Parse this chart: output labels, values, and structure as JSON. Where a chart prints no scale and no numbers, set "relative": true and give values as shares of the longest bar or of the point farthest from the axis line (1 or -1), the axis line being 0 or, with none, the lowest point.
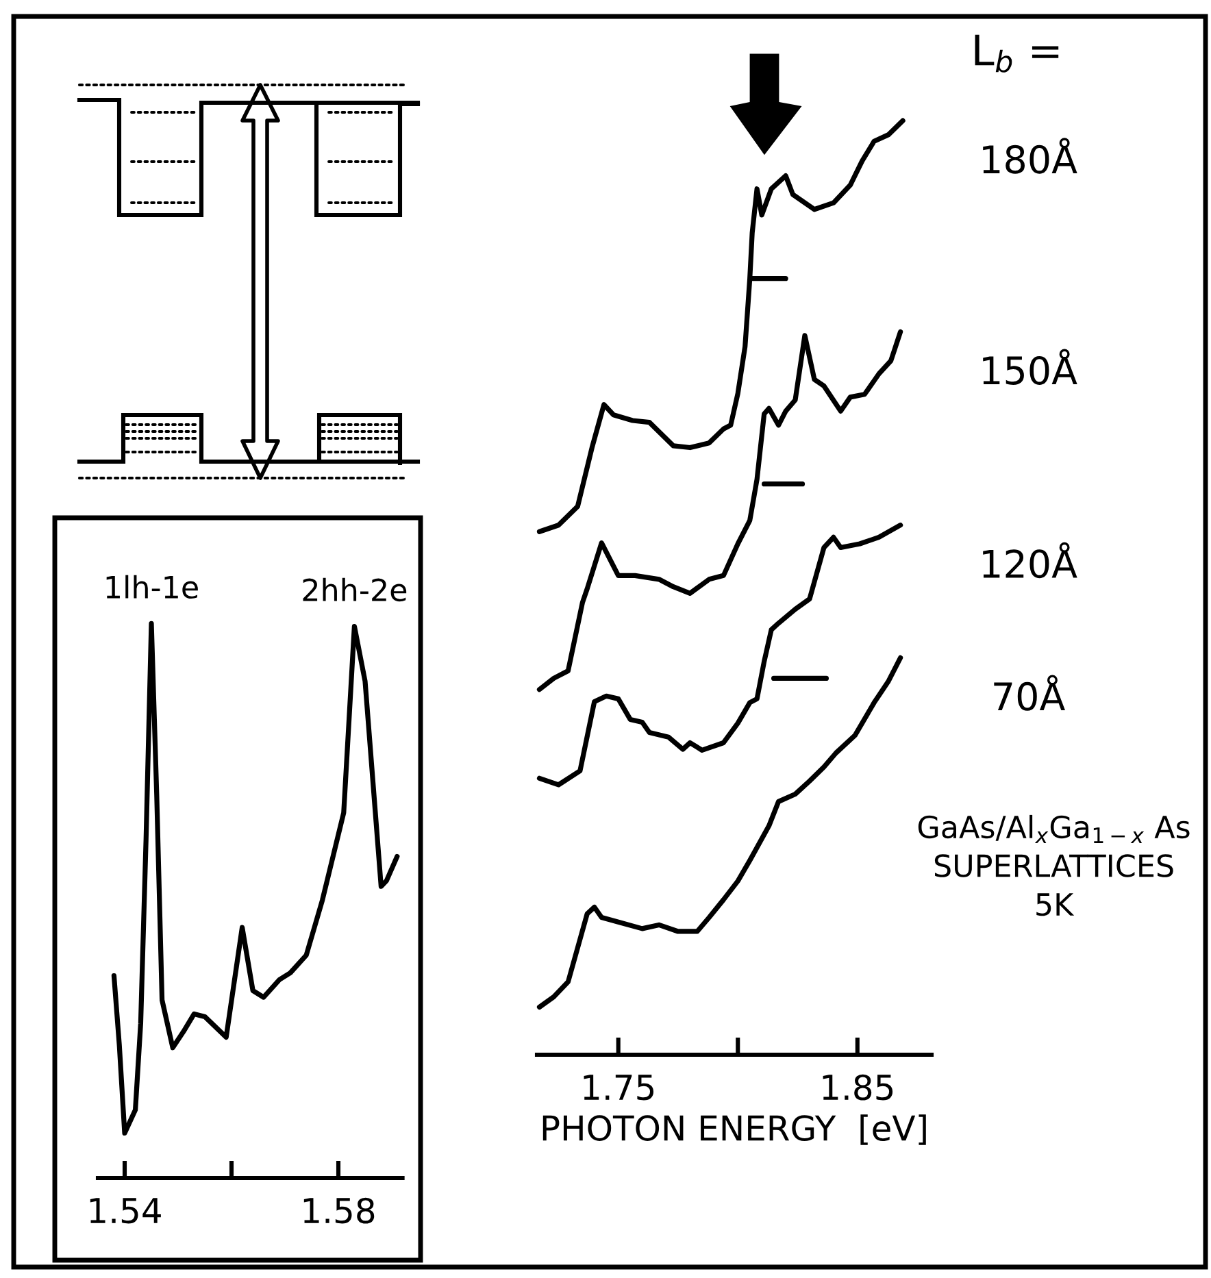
{
  "chart_data": [
    {
      "type": "line",
      "relative": true,
      "xlabel": "PHOTON ENERGY  [eV]",
      "legend_title": "L$_{b}$ =",
      "xlim": [
        1.716,
        1.881
      ],
      "xticks": [
        1.75,
        {
          "value": 1.8,
          "label": null
        },
        1.85
      ],
      "annotations": [
        "GaAs/Al$_{x}$Ga$_{1−x}$ As\nSUPERLATTICES\n5K"
      ],
      "series": [
        {
          "name": "180Å",
          "color": "#000000",
          "x": [
            1.717,
            1.725,
            1.733,
            1.739,
            1.744,
            1.748,
            1.756,
            1.763,
            1.773,
            1.78,
            1.788,
            1.794,
            1.797,
            1.8,
            1.803,
            1.805,
            1.806,
            1.808,
            1.81,
            1.814,
            1.82,
            1.823,
            1.832,
            1.84,
            1.847,
            1.852,
            1.857,
            1.863,
            1.869
          ],
          "values": [
            0.56,
            0.567,
            0.587,
            0.65,
            0.696,
            0.685,
            0.679,
            0.677,
            0.652,
            0.65,
            0.655,
            0.67,
            0.674,
            0.708,
            0.758,
            0.831,
            0.88,
            0.927,
            0.899,
            0.927,
            0.941,
            0.921,
            0.905,
            0.912,
            0.931,
            0.957,
            0.978,
            0.985,
            1.0
          ]
        },
        {
          "name": "150Å",
          "color": "#000000",
          "x": [
            1.717,
            1.723,
            1.729,
            1.735,
            1.737,
            1.743,
            1.75,
            1.757,
            1.767,
            1.773,
            1.78,
            1.788,
            1.794,
            1.8,
            1.805,
            1.808,
            1.811,
            1.813,
            1.817,
            1.82,
            1.824,
            1.828,
            1.832,
            1.836,
            1.843,
            1.847,
            1.853,
            1.859,
            1.864,
            1.868
          ],
          "values": [
            0.391,
            0.403,
            0.411,
            0.484,
            0.499,
            0.548,
            0.513,
            0.513,
            0.509,
            0.501,
            0.494,
            0.509,
            0.513,
            0.547,
            0.572,
            0.616,
            0.686,
            0.692,
            0.674,
            0.689,
            0.701,
            0.77,
            0.723,
            0.716,
            0.689,
            0.704,
            0.707,
            0.729,
            0.743,
            0.774
          ]
        },
        {
          "name": "120Å",
          "color": "#000000",
          "x": [
            1.717,
            1.725,
            1.734,
            1.74,
            1.745,
            1.75,
            1.755,
            1.76,
            1.763,
            1.771,
            1.777,
            1.78,
            1.785,
            1.794,
            1.8,
            1.805,
            1.808,
            1.811,
            1.814,
            1.817,
            1.824,
            1.83,
            1.836,
            1.84,
            1.843,
            1.851,
            1.859,
            1.868
          ],
          "values": [
            0.296,
            0.289,
            0.304,
            0.378,
            0.384,
            0.381,
            0.359,
            0.356,
            0.345,
            0.34,
            0.327,
            0.334,
            0.326,
            0.334,
            0.355,
            0.377,
            0.381,
            0.421,
            0.455,
            0.462,
            0.477,
            0.488,
            0.543,
            0.554,
            0.543,
            0.547,
            0.554,
            0.567
          ]
        },
        {
          "name": "70Å",
          "color": "#000000",
          "x": [
            1.717,
            1.723,
            1.729,
            1.737,
            1.74,
            1.743,
            1.75,
            1.76,
            1.767,
            1.775,
            1.783,
            1.788,
            1.794,
            1.8,
            1.805,
            1.813,
            1.817,
            1.824,
            1.83,
            1.836,
            1.841,
            1.849,
            1.857,
            1.863,
            1.868
          ],
          "values": [
            0.051,
            0.062,
            0.078,
            0.151,
            0.158,
            0.147,
            0.142,
            0.135,
            0.139,
            0.132,
            0.132,
            0.147,
            0.166,
            0.186,
            0.208,
            0.245,
            0.271,
            0.279,
            0.293,
            0.308,
            0.323,
            0.342,
            0.377,
            0.4,
            0.425
          ]
        },
        {
          "color": "#000000",
          "x": [
            1.806,
            1.82
          ],
          "values": [
            0.831,
            0.831
          ]
        },
        {
          "color": "#000000",
          "x": [
            1.811,
            1.827
          ],
          "values": [
            0.611,
            0.611
          ]
        },
        {
          "color": "#000000",
          "x": [
            1.815,
            1.837
          ],
          "values": [
            0.403,
            0.403
          ]
        }
      ]
    },
    {
      "type": "line",
      "relative": true,
      "xlim": [
        1.535,
        1.592
      ],
      "xticks": [
        1.54,
        {
          "value": 1.56,
          "label": null
        },
        1.58
      ],
      "annotations": [
        {
          "text": "1lh-1e",
          "x": 1.545,
          "y": 1.0
        },
        {
          "text": "2hh-2e",
          "x": 1.583,
          "y": 0.995
        }
      ],
      "series": [
        {
          "color": "#000000",
          "x": [
            1.538,
            1.539,
            1.54,
            1.542,
            1.543,
            1.544,
            1.545,
            1.546,
            1.547,
            1.549,
            1.551,
            1.553,
            1.555,
            1.559,
            1.562,
            1.564,
            1.566,
            1.569,
            1.571,
            1.574,
            1.577,
            1.581,
            1.583,
            1.585,
            1.588,
            1.589,
            1.591
          ],
          "values": [
            0.365,
            0.24,
            0.081,
            0.123,
            0.279,
            0.61,
            1.0,
            0.691,
            0.321,
            0.235,
            0.264,
            0.296,
            0.291,
            0.254,
            0.452,
            0.338,
            0.326,
            0.358,
            0.37,
            0.402,
            0.501,
            0.659,
            0.995,
            0.896,
            0.526,
            0.536,
            0.58
          ]
        }
      ]
    }
  ]
}
